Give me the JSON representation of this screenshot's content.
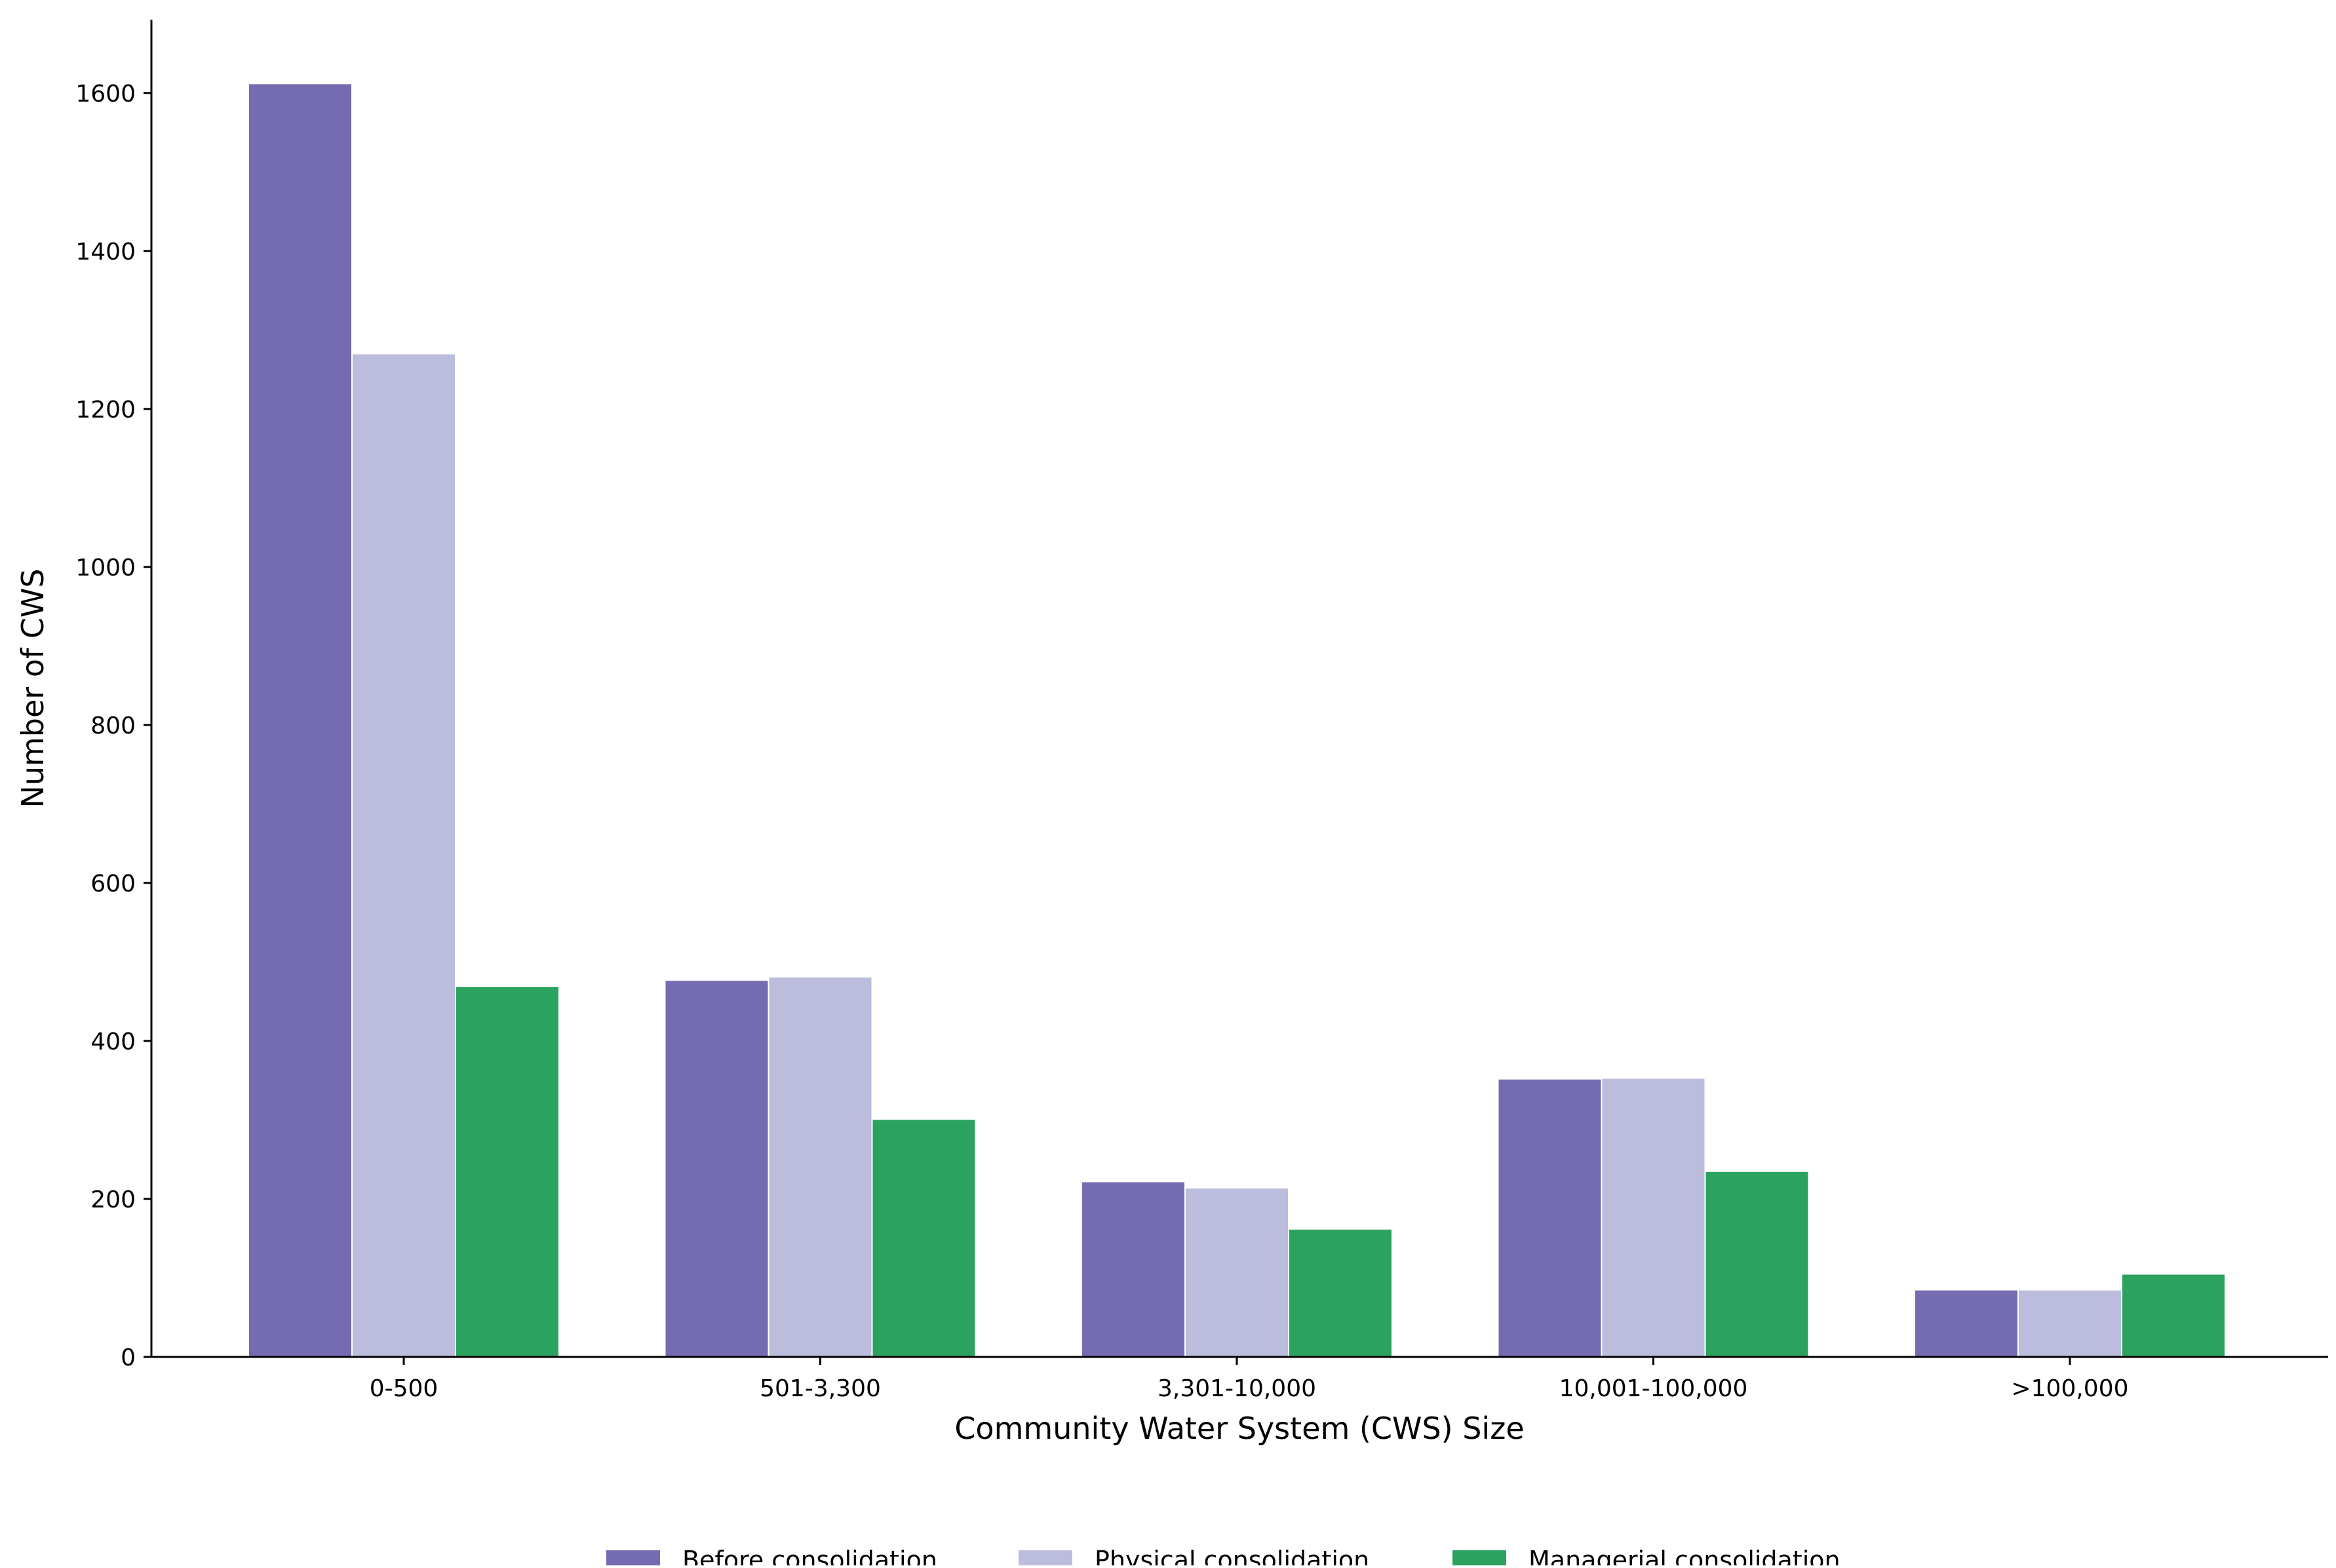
{
  "chart_data": {
    "type": "bar",
    "title": "",
    "xlabel": "Community Water System (CWS) Size",
    "ylabel": "Number of CWS",
    "categories": [
      "0-500",
      "501-3,300",
      "3,301-10,000",
      "10,001-100,000",
      ">100,000"
    ],
    "series": [
      {
        "name": "Before consolidation",
        "color": "#756bb1",
        "values": [
          1612,
          477,
          222,
          352,
          85
        ]
      },
      {
        "name": "Physical consolidation",
        "color": "#bcbddc",
        "values": [
          1270,
          481,
          214,
          353,
          85
        ]
      },
      {
        "name": "Managerial consolidation",
        "color": "#2ca25f",
        "values": [
          469,
          301,
          162,
          235,
          105
        ]
      }
    ],
    "ylim": [
      0,
      1690
    ],
    "yticks": [
      0,
      200,
      400,
      600,
      800,
      1000,
      1200,
      1400,
      1600
    ],
    "grid": false,
    "legend_position": "bottom-center"
  }
}
